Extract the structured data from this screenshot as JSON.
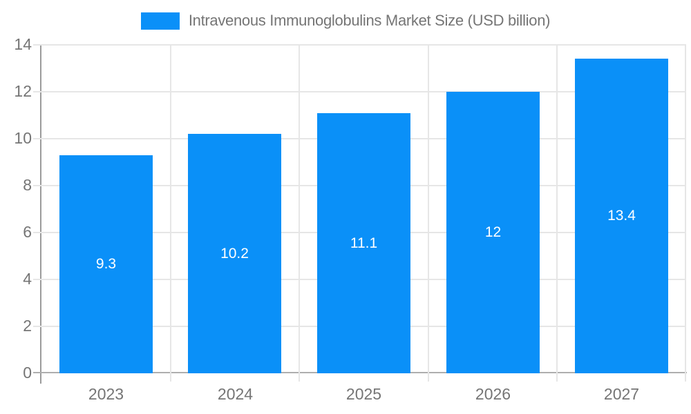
{
  "chart_data": {
    "type": "bar",
    "title": "Intravenous Immunoglobulins Market Size (USD billion)",
    "categories": [
      "2023",
      "2024",
      "2025",
      "2026",
      "2027"
    ],
    "series": [
      {
        "name": "Intravenous Immunoglobulins Market Size (USD billion)",
        "values": [
          9.3,
          10.2,
          11.1,
          12,
          13.4
        ]
      }
    ],
    "bar_labels": [
      "9.3",
      "10.2",
      "11.1",
      "12",
      "13.4"
    ],
    "xlabel": "",
    "ylabel": "",
    "ylim": [
      0,
      14
    ],
    "yticks": [
      0,
      2,
      4,
      6,
      8,
      10,
      12,
      14
    ],
    "grid": true,
    "legend_position": "top",
    "colors": {
      "bar": "#0a90f8",
      "grid": "#e6e6e6",
      "axis": "#aeaeae",
      "axis_dark": "#9b9b9b",
      "text": "#757575",
      "bar_label": "#ffffff",
      "background": "#ffffff"
    }
  }
}
